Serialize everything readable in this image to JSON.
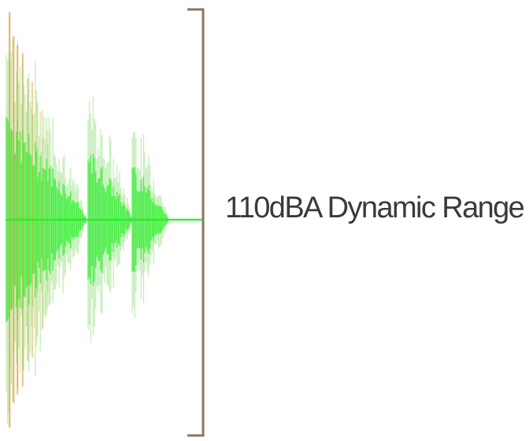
{
  "caption": "110dBA Dynamic Range",
  "colors": {
    "wave_bright": "#22ee22",
    "wave_light": "#8fe07a",
    "wave_warm": "#d9a13a",
    "bracket": "#8a7558",
    "text": "#3a3a3a"
  },
  "icons": {
    "waveform": "audio-waveform-icon",
    "bracket": "range-bracket-icon"
  }
}
